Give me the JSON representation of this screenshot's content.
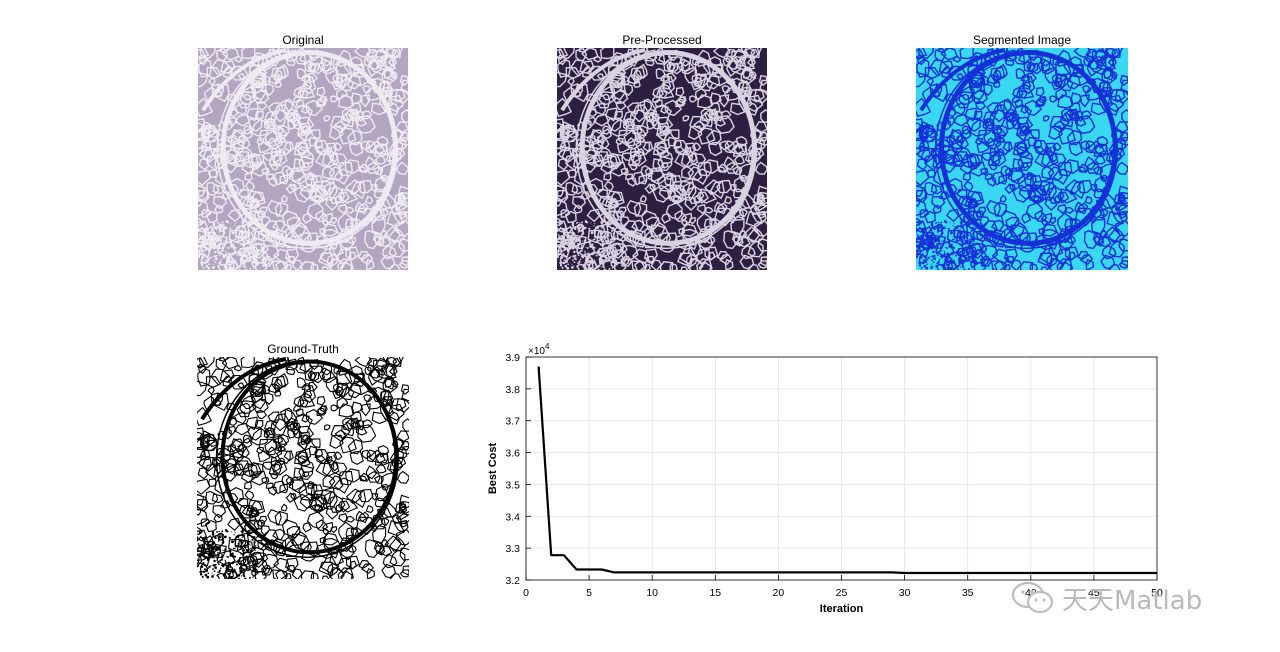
{
  "panels": {
    "original": {
      "title": "Original"
    },
    "preprocessed": {
      "title": "Pre-Processed"
    },
    "segmented": {
      "title": "Segmented Image"
    },
    "groundtruth": {
      "title": "Ground-Truth"
    }
  },
  "colors": {
    "original_bg": "#b3a6c0",
    "original_mesh": "#efeaf2",
    "pre_bg": "#2d1f42",
    "pre_mesh": "#d9d2e0",
    "seg_bg": "#39d8f2",
    "seg_mesh": "#1530d6",
    "gt_bg": "#ffffff",
    "gt_mesh": "#000000",
    "line": "#000000",
    "grid": "#e2e2e2"
  },
  "chart_data": {
    "type": "line",
    "xlabel": "Iteration",
    "ylabel": "Best Cost",
    "exponent_label": "×10",
    "exponent_power": "4",
    "xlim": [
      0,
      50
    ],
    "ylim": [
      3.2,
      3.9
    ],
    "grid": true,
    "x_ticks": [
      0,
      5,
      10,
      15,
      20,
      25,
      30,
      35,
      40,
      45,
      50
    ],
    "x_tick_labels": [
      "0",
      "5",
      "10",
      "15",
      "20",
      "25",
      "30",
      "35",
      "40",
      "45",
      "50"
    ],
    "y_ticks": [
      3.2,
      3.3,
      3.4,
      3.5,
      3.6,
      3.7,
      3.8,
      3.9
    ],
    "y_tick_labels": [
      "3.2",
      "3.3",
      "3.4",
      "3.5",
      "3.6",
      "3.7",
      "3.8",
      "3.9"
    ],
    "series": [
      {
        "x": [
          1,
          2,
          3,
          4,
          5,
          6,
          7,
          8,
          9,
          10,
          11,
          12,
          13,
          14,
          15,
          16,
          17,
          18,
          19,
          20,
          21,
          22,
          23,
          24,
          25,
          26,
          27,
          28,
          29,
          30,
          31,
          32,
          33,
          34,
          35,
          36,
          37,
          38,
          39,
          40,
          41,
          42,
          43,
          44,
          45,
          46,
          47,
          48,
          49,
          50
        ],
        "values": [
          3.87,
          3.278,
          3.278,
          3.233,
          3.233,
          3.233,
          3.224,
          3.224,
          3.224,
          3.224,
          3.224,
          3.224,
          3.224,
          3.224,
          3.224,
          3.224,
          3.224,
          3.224,
          3.224,
          3.224,
          3.224,
          3.224,
          3.224,
          3.224,
          3.224,
          3.224,
          3.224,
          3.224,
          3.224,
          3.222,
          3.222,
          3.222,
          3.222,
          3.222,
          3.222,
          3.222,
          3.222,
          3.222,
          3.222,
          3.222,
          3.222,
          3.222,
          3.222,
          3.222,
          3.222,
          3.222,
          3.222,
          3.222,
          3.222,
          3.222
        ]
      }
    ]
  },
  "watermark": {
    "text": "天天Matlab",
    "icon": "wechat-icon"
  }
}
